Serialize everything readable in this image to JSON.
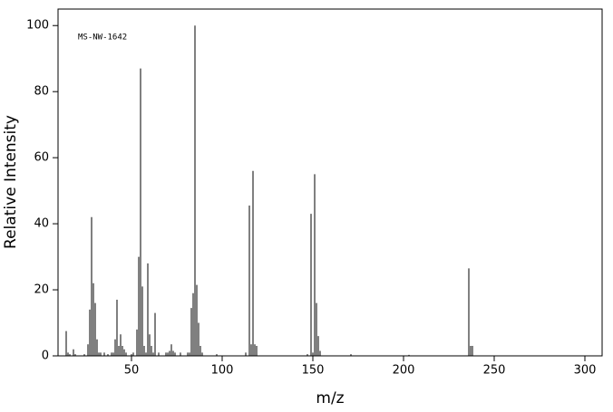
{
  "chart_data": {
    "type": "bar",
    "annotation": "MS-NW-1642",
    "xlabel": "m/z",
    "ylabel": "Relative Intensity",
    "color": "#000000",
    "x": [
      14,
      15,
      16,
      18,
      19,
      24,
      26,
      27,
      28,
      29,
      30,
      31,
      32,
      33,
      35,
      37,
      39,
      40,
      41,
      42,
      43,
      44,
      45,
      46,
      47,
      50,
      51,
      53,
      54,
      55,
      56,
      57,
      58,
      59,
      60,
      61,
      62,
      63,
      65,
      69,
      70,
      71,
      72,
      73,
      74,
      77,
      81,
      82,
      83,
      84,
      85,
      86,
      87,
      88,
      89,
      97,
      113,
      115,
      116,
      117,
      118,
      119,
      147,
      149,
      150,
      151,
      152,
      153,
      154,
      171,
      203,
      236,
      237,
      238
    ],
    "values": [
      7.5,
      1,
      0.5,
      2,
      0.5,
      0.5,
      3.5,
      14,
      42,
      22,
      16,
      5,
      1,
      1,
      1,
      0.5,
      1,
      1,
      5,
      17,
      3,
      6.5,
      3,
      2,
      1,
      0.5,
      1,
      8,
      30,
      87,
      21,
      3,
      1,
      28,
      6.5,
      3,
      1,
      13,
      1,
      1,
      1,
      1.5,
      3.5,
      1.5,
      1,
      1,
      1,
      1,
      14.5,
      19,
      100,
      21.5,
      10,
      3,
      1,
      0.5,
      1,
      45.5,
      3.5,
      56,
      3.5,
      3,
      0.5,
      43,
      1,
      55,
      16,
      6,
      1.5,
      0.5,
      0.3,
      26.5,
      3,
      3
    ],
    "xlim": [
      9.5,
      309.5
    ],
    "ylim": [
      0,
      105
    ],
    "xticks": [
      50,
      100,
      150,
      200,
      250,
      300
    ],
    "yticks": [
      0,
      20,
      40,
      60,
      80,
      100
    ]
  }
}
